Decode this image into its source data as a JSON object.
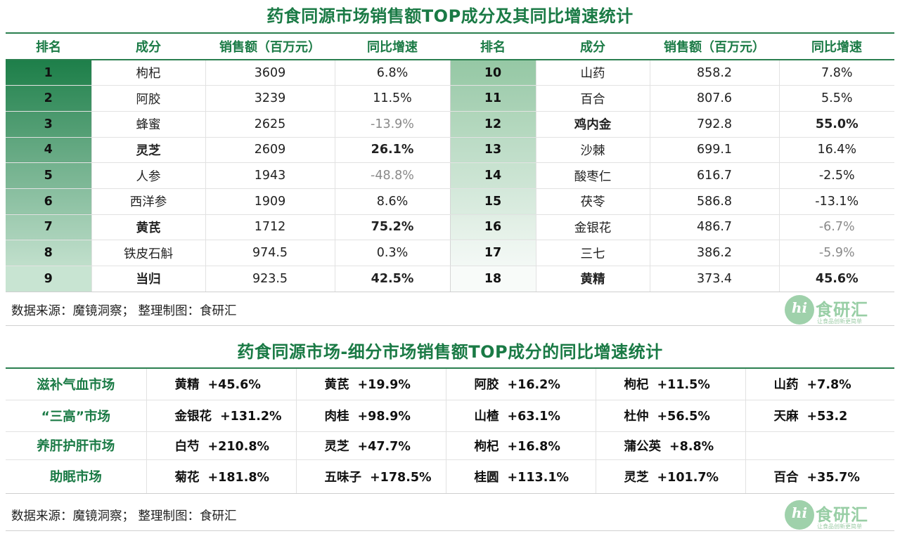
{
  "title1": "药食同源市场销售额TOP成分及其同比增速统计",
  "table1": {
    "headers": [
      "排名",
      "成分",
      "销售额（百万元）",
      "同比增速",
      "排名",
      "成分",
      "销售额（百万元）",
      "同比增速"
    ],
    "left": [
      {
        "rank": "1",
        "name": "枸杞",
        "sales": "3609",
        "growth": "6.8%"
      },
      {
        "rank": "2",
        "name": "阿胶",
        "sales": "3239",
        "growth": "11.5%"
      },
      {
        "rank": "3",
        "name": "蜂蜜",
        "sales": "2625",
        "growth": "-13.9%"
      },
      {
        "rank": "4",
        "name": "灵芝",
        "sales": "2609",
        "growth": "26.1%"
      },
      {
        "rank": "5",
        "name": "人参",
        "sales": "1943",
        "growth": "-48.8%"
      },
      {
        "rank": "6",
        "name": "西洋参",
        "sales": "1909",
        "growth": "8.6%"
      },
      {
        "rank": "7",
        "name": "黄芪",
        "sales": "1712",
        "growth": "75.2%"
      },
      {
        "rank": "8",
        "name": "铁皮石斛",
        "sales": "974.5",
        "growth": "0.3%"
      },
      {
        "rank": "9",
        "name": "当归",
        "sales": "923.5",
        "growth": "42.5%"
      }
    ],
    "right": [
      {
        "rank": "10",
        "name": "山药",
        "sales": "858.2",
        "growth": "7.8%"
      },
      {
        "rank": "11",
        "name": "百合",
        "sales": "807.6",
        "growth": "5.5%"
      },
      {
        "rank": "12",
        "name": "鸡内金",
        "sales": "792.8",
        "growth": "55.0%"
      },
      {
        "rank": "13",
        "name": "沙棘",
        "sales": "699.1",
        "growth": "16.4%"
      },
      {
        "rank": "14",
        "name": "酸枣仁",
        "sales": "616.7",
        "growth": "-2.5%"
      },
      {
        "rank": "15",
        "name": "茯苓",
        "sales": "586.8",
        "growth": "-13.1%"
      },
      {
        "rank": "16",
        "name": "金银花",
        "sales": "486.7",
        "growth": "-6.7%"
      },
      {
        "rank": "17",
        "name": "三七",
        "sales": "386.2",
        "growth": "-5.9%"
      },
      {
        "rank": "18",
        "name": "黄精",
        "sales": "373.4",
        "growth": "45.6%"
      }
    ]
  },
  "source_text": "数据来源：魔镜洞察；   整理制图：食研汇",
  "logo": {
    "mark": "hi",
    "name": "食研汇",
    "slogan": "让食品创新更简单"
  },
  "title2": "药食同源市场-细分市场销售额TOP成分的同比增速统计",
  "table2": [
    {
      "category": "滋补气血市场",
      "items": [
        {
          "name": "黄精",
          "value": "+45.6%"
        },
        {
          "name": "黄芪",
          "value": "+19.9%"
        },
        {
          "name": "阿胶",
          "value": "+16.2%"
        },
        {
          "name": "枸杞",
          "value": "+11.5%"
        },
        {
          "name": "山药",
          "value": "+7.8%"
        }
      ]
    },
    {
      "category": "“三高”市场",
      "items": [
        {
          "name": "金银花",
          "value": "+131.2%"
        },
        {
          "name": "肉桂",
          "value": "+98.9%"
        },
        {
          "name": "山楂",
          "value": "+63.1%"
        },
        {
          "name": "杜仲",
          "value": "+56.5%"
        },
        {
          "name": "天麻",
          "value": "+53.2"
        }
      ]
    },
    {
      "category": "养肝护肝市场",
      "items": [
        {
          "name": "白芍",
          "value": "+210.8%"
        },
        {
          "name": "灵芝",
          "value": "+47.7%"
        },
        {
          "name": "枸杞",
          "value": "+16.8%"
        },
        {
          "name": "蒲公英",
          "value": "+8.8%"
        },
        {
          "name": "",
          "value": ""
        }
      ]
    },
    {
      "category": "助眠市场",
      "items": [
        {
          "name": "菊花",
          "value": "+181.8%"
        },
        {
          "name": "五味子",
          "value": "+178.5%"
        },
        {
          "name": "桂圆",
          "value": "+113.1%"
        },
        {
          "name": "灵芝",
          "value": "+101.7%"
        },
        {
          "name": "百合",
          "value": "+35.7%"
        }
      ]
    }
  ],
  "colors": {
    "accent": "#1a7a45",
    "rank_gradient_top": "#1e7f4a",
    "rank_gradient_bottom": "#e9f4ec"
  }
}
